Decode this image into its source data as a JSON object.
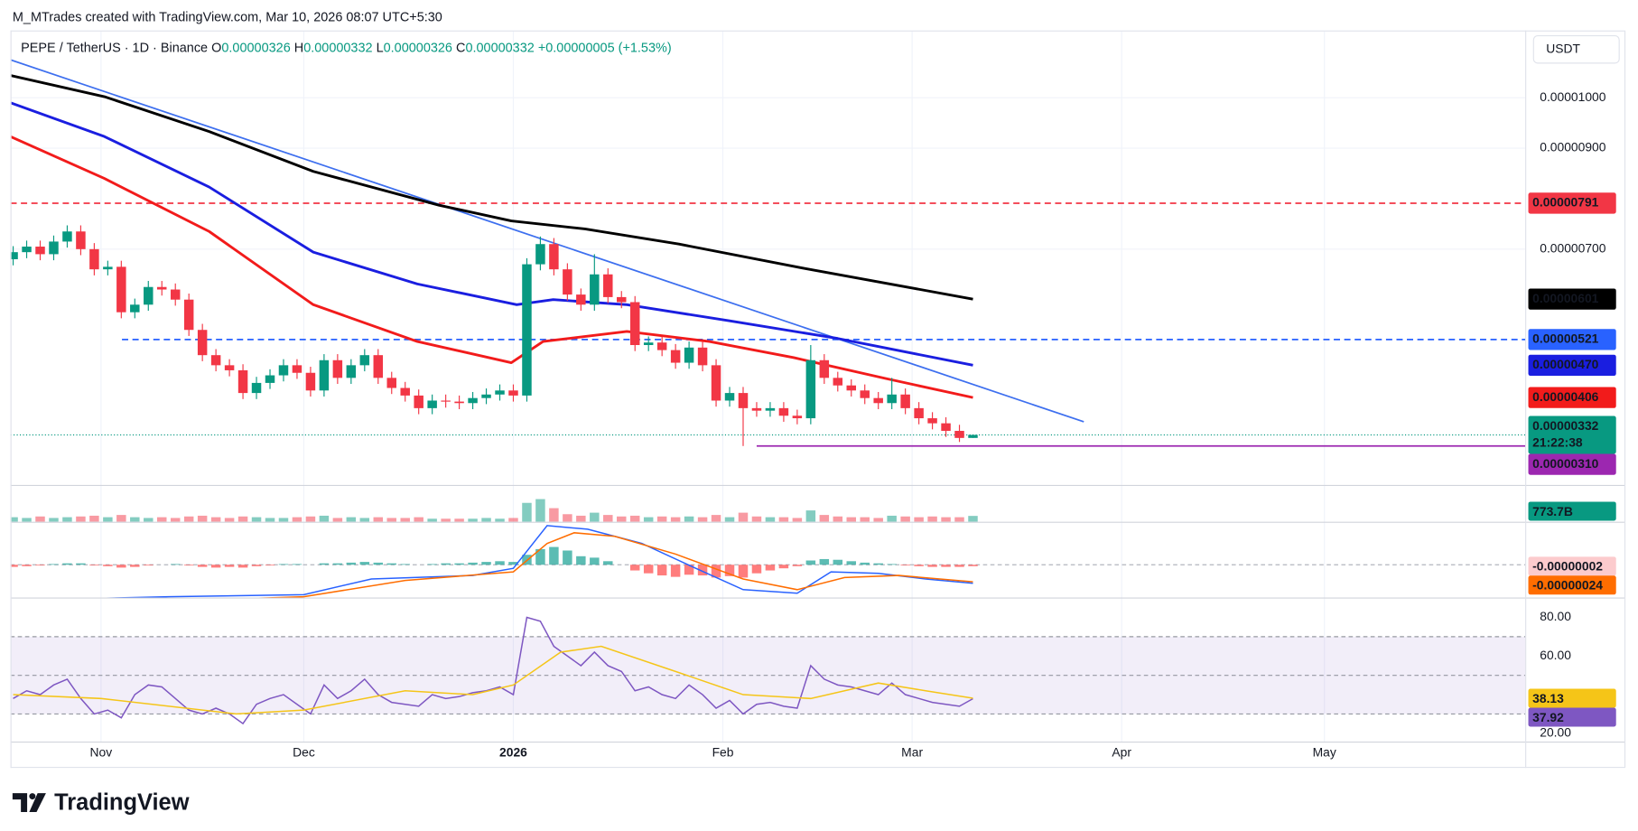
{
  "header": {
    "credit": "M_MTrades created with TradingView.com, Mar 10, 2026 08:07 UTC+5:30",
    "symbol": "PEPE / TetherUS · 1D · Binance",
    "ohlc": [
      "O",
      "0.00000326",
      "H",
      "0.00000332",
      "L",
      "0.00000326",
      "C",
      "0.00000332"
    ],
    "change": "+0.00000005 (+1.53%)",
    "currency": "USDT"
  },
  "footer": {
    "brand": "TradingView"
  },
  "chart_data": [
    {
      "type": "candlestick",
      "up_color": "#089981",
      "down_color": "#f23645",
      "xlim": [
        -13.4,
        210.7
      ],
      "xticks": [
        {
          "value": 0,
          "label": "Nov"
        },
        {
          "value": 30,
          "label": "Dec"
        },
        {
          "value": 61,
          "label": "2026"
        },
        {
          "value": 92,
          "label": "Feb"
        },
        {
          "value": 120,
          "label": "Mar"
        },
        {
          "value": 151,
          "label": "Apr"
        },
        {
          "value": 181,
          "label": "May"
        }
      ],
      "ylim": [
        2.35e-06,
        1.131e-05
      ],
      "yticks": [
        {
          "value": 1e-05,
          "label": "0.00001000"
        },
        {
          "value": 9e-06,
          "label": "0.00000900"
        },
        {
          "value": 7e-06,
          "label": "0.00000700"
        }
      ],
      "grid": true,
      "x": [
        -13,
        -11,
        -9,
        -7,
        -5,
        -3,
        -1,
        1,
        3,
        5,
        7,
        9,
        11,
        13,
        15,
        17,
        19,
        21,
        23,
        25,
        27,
        29,
        31,
        33,
        35,
        37,
        39,
        41,
        43,
        45,
        47,
        49,
        51,
        53,
        55,
        57,
        59,
        61,
        63,
        65,
        67,
        69,
        71,
        73,
        75,
        77,
        79,
        81,
        83,
        85,
        87,
        89,
        91,
        93,
        95,
        97,
        99,
        101,
        103,
        105,
        107,
        109,
        111,
        113,
        115,
        117,
        119,
        121,
        123,
        125,
        127,
        129
      ],
      "open": [
        6.8e-06,
        6.94e-06,
        7.05e-06,
        6.9e-06,
        7.15e-06,
        7.35e-06,
        7e-06,
        6.6e-06,
        6.65e-06,
        5.75e-06,
        5.9e-06,
        6.25e-06,
        6.2e-06,
        6e-06,
        5.4e-06,
        4.9e-06,
        4.7e-06,
        4.6e-06,
        4.15e-06,
        4.35e-06,
        4.5e-06,
        4.7e-06,
        4.55e-06,
        4.2e-06,
        4.8e-06,
        4.45e-06,
        4.7e-06,
        4.9e-06,
        4.45e-06,
        4.25e-06,
        4.1e-06,
        3.85e-06,
        4e-06,
        3.98e-06,
        3.95e-06,
        4.05e-06,
        4.12e-06,
        4.2e-06,
        4.1e-06,
        6.7e-06,
        7.1e-06,
        6.6e-06,
        6.1e-06,
        5.9e-06,
        6.5e-06,
        6.05e-06,
        5.95e-06,
        5.1e-06,
        5.15e-06,
        5e-06,
        4.75e-06,
        5.05e-06,
        4.7e-06,
        4e-06,
        4.15e-06,
        3.85e-06,
        3.8e-06,
        3.85e-06,
        3.7e-06,
        3.65e-06,
        4.8e-06,
        4.45e-06,
        4.3e-06,
        4.2e-06,
        4.05e-06,
        3.95e-06,
        4.12e-06,
        3.85e-06,
        3.65e-06,
        3.55e-06,
        3.4e-06,
        3.26e-06
      ],
      "high": [
        7.06e-06,
        7.17e-06,
        7.17e-06,
        7.27e-06,
        7.47e-06,
        7.47e-06,
        7.12e-06,
        6.77e-06,
        6.77e-06,
        6.02e-06,
        6.37e-06,
        6.37e-06,
        6.32e-06,
        6.12e-06,
        5.52e-06,
        5.02e-06,
        4.82e-06,
        4.72e-06,
        4.47e-06,
        4.62e-06,
        4.82e-06,
        4.82e-06,
        4.67e-06,
        4.92e-06,
        4.92e-06,
        4.82e-06,
        5.02e-06,
        5.02e-06,
        4.57e-06,
        4.37e-06,
        4.22e-06,
        4.12e-06,
        4.12e-06,
        4.1e-06,
        4.17e-06,
        4.24e-06,
        4.32e-06,
        4.32e-06,
        6.82e-06,
        7.25e-06,
        7.22e-06,
        6.72e-06,
        6.22e-06,
        6.9e-06,
        6.62e-06,
        6.17e-06,
        6.07e-06,
        5.27e-06,
        5.27e-06,
        5.12e-06,
        5.17e-06,
        5.17e-06,
        4.82e-06,
        4.27e-06,
        4.27e-06,
        3.97e-06,
        3.97e-06,
        3.97e-06,
        3.82e-06,
        5.1e-06,
        4.92e-06,
        4.57e-06,
        4.42e-06,
        4.32e-06,
        4.17e-06,
        4.45e-06,
        4.24e-06,
        3.97e-06,
        3.77e-06,
        3.67e-06,
        3.52e-06,
        3.32e-06
      ],
      "low": [
        6.68e-06,
        6.82e-06,
        6.78e-06,
        6.78e-06,
        7.03e-06,
        6.88e-06,
        6.48e-06,
        6.48e-06,
        5.63e-06,
        5.63e-06,
        5.78e-06,
        6.08e-06,
        5.88e-06,
        5.28e-06,
        4.78e-06,
        4.58e-06,
        4.48e-06,
        4.03e-06,
        4.03e-06,
        4.23e-06,
        4.38e-06,
        4.43e-06,
        4.08e-06,
        4.08e-06,
        4.33e-06,
        4.33e-06,
        4.58e-06,
        4.33e-06,
        4.13e-06,
        3.98e-06,
        3.73e-06,
        3.73e-06,
        3.86e-06,
        3.83e-06,
        3.83e-06,
        3.93e-06,
        4e-06,
        3.98e-06,
        3.98e-06,
        6.58e-06,
        6.48e-06,
        5.98e-06,
        5.78e-06,
        5.78e-06,
        5.93e-06,
        5.83e-06,
        4.98e-06,
        4.98e-06,
        4.88e-06,
        4.63e-06,
        4.63e-06,
        4.58e-06,
        3.88e-06,
        3.88e-06,
        3.1e-06,
        3.68e-06,
        3.68e-06,
        3.58e-06,
        3.53e-06,
        3.53e-06,
        4.33e-06,
        4.18e-06,
        4.08e-06,
        3.93e-06,
        3.83e-06,
        3.83e-06,
        3.73e-06,
        3.53e-06,
        3.43e-06,
        3.28e-06,
        3.18e-06,
        3.26e-06
      ],
      "close": [
        6.94e-06,
        7.05e-06,
        6.9e-06,
        7.15e-06,
        7.35e-06,
        7e-06,
        6.6e-06,
        6.65e-06,
        5.75e-06,
        5.9e-06,
        6.25e-06,
        6.2e-06,
        6e-06,
        5.4e-06,
        4.9e-06,
        4.7e-06,
        4.6e-06,
        4.15e-06,
        4.35e-06,
        4.5e-06,
        4.7e-06,
        4.55e-06,
        4.2e-06,
        4.8e-06,
        4.45e-06,
        4.7e-06,
        4.9e-06,
        4.45e-06,
        4.25e-06,
        4.1e-06,
        3.85e-06,
        4e-06,
        3.98e-06,
        3.95e-06,
        4.05e-06,
        4.12e-06,
        4.2e-06,
        4.1e-06,
        6.7e-06,
        7.1e-06,
        6.6e-06,
        6.1e-06,
        5.9e-06,
        6.5e-06,
        6.05e-06,
        5.95e-06,
        5.1e-06,
        5.15e-06,
        5e-06,
        4.75e-06,
        5.05e-06,
        4.7e-06,
        4e-06,
        4.15e-06,
        3.85e-06,
        3.8e-06,
        3.85e-06,
        3.7e-06,
        3.65e-06,
        4.8e-06,
        4.45e-06,
        4.3e-06,
        4.2e-06,
        4.05e-06,
        3.95e-06,
        4.12e-06,
        3.85e-06,
        3.65e-06,
        3.55e-06,
        3.4e-06,
        3.26e-06,
        3.32e-06
      ],
      "lines": [
        {
          "color": "#000000",
          "x": [
            -13.4,
            0.5,
            16,
            31.4,
            50,
            60.7,
            71.6,
            85.5,
            104,
            129
          ],
          "values": [
            1.044e-05,
            1.002e-05,
            9.33e-06,
            8.54e-06,
            7.87e-06,
            7.56e-06,
            7.4e-06,
            7.1e-06,
            6.62e-06,
            6.01e-06
          ],
          "label": "0.00000601"
        },
        {
          "color": "#1a1ee0",
          "x": [
            -13.4,
            0.5,
            16,
            31.4,
            46.8,
            61.5,
            66.9,
            77.8,
            93,
            109,
            129
          ],
          "values": [
            9.9e-06,
            9.23e-06,
            8.23e-06,
            6.94e-06,
            6.31e-06,
            5.9e-06,
            6e-06,
            5.9e-06,
            5.58e-06,
            5.23e-06,
            4.7e-06
          ],
          "label": "0.00000470"
        },
        {
          "color": "#f21b1b",
          "x": [
            -13.4,
            0.5,
            16,
            31.4,
            46.8,
            60.7,
            65.4,
            77.8,
            90,
            102.5,
            116,
            129
          ],
          "values": [
            9.23e-06,
            8.4e-06,
            7.35e-06,
            5.9e-06,
            5.17e-06,
            4.75e-06,
            5.17e-06,
            5.37e-06,
            5.17e-06,
            4.85e-06,
            4.44e-06,
            4.06e-06
          ],
          "label": "0.00000406"
        }
      ],
      "trendline": {
        "color": "#3d6fef",
        "x": [
          -13.4,
          145.4
        ],
        "values": [
          1.075e-05,
          3.58e-06
        ]
      },
      "levels": [
        {
          "value": 7.91e-06,
          "label": "0.00000791",
          "color": "#f23645",
          "style": "dashed"
        },
        {
          "value": 5.21e-06,
          "label": "0.00000521",
          "color": "#2962ff",
          "style": "dashed",
          "xstart": 3.1
        },
        {
          "value": 3.1e-06,
          "label": "0.00000310",
          "color": "#9c27b0",
          "style": "solid",
          "xstart": 97
        }
      ],
      "price_line": {
        "value": 3.32e-06,
        "label": "0.00000332",
        "countdown": "21:22:38",
        "color": "#089981"
      }
    },
    {
      "type": "volume",
      "ylim": [
        0,
        4600000000000.0
      ],
      "values": [
        600000000000.0,
        500000000000.0,
        700000000000.0,
        500000000000.0,
        600000000000.0,
        700000000000.0,
        800000000000.0,
        600000000000.0,
        900000000000.0,
        600000000000.0,
        500000000000.0,
        600000000000.0,
        500000000000.0,
        700000000000.0,
        800000000000.0,
        600000000000.0,
        500000000000.0,
        700000000000.0,
        600000000000.0,
        500000000000.0,
        500000000000.0,
        600000000000.0,
        700000000000.0,
        800000000000.0,
        500000000000.0,
        600000000000.0,
        500000000000.0,
        600000000000.0,
        500000000000.0,
        500000000000.0,
        600000000000.0,
        400000000000.0,
        400000000000.0,
        400000000000.0,
        400000000000.0,
        500000000000.0,
        400000000000.0,
        500000000000.0,
        2500000000000.0,
        3000000000000.0,
        1800000000000.0,
        1000000000000.0,
        800000000000.0,
        1200000000000.0,
        900000000000.0,
        700000000000.0,
        800000000000.0,
        600000000000.0,
        700000000000.0,
        600000000000.0,
        700000000000.0,
        600000000000.0,
        900000000000.0,
        600000000000.0,
        1200000000000.0,
        700000000000.0,
        600000000000.0,
        600000000000.0,
        500000000000.0,
        1500000000000.0,
        900000000000.0,
        700000000000.0,
        600000000000.0,
        600000000000.0,
        500000000000.0,
        800000000000.0,
        700000000000.0,
        600000000000.0,
        700000000000.0,
        600000000000.0,
        600000000000.0,
        773700000000
      ],
      "value_labels": [
        null,
        null,
        null,
        null,
        null,
        null,
        null,
        null,
        null,
        null,
        null,
        null,
        null,
        null,
        null,
        null,
        null,
        null,
        null,
        null,
        null,
        null,
        null,
        null,
        null,
        null,
        null,
        null,
        null,
        null,
        null,
        null,
        null,
        null,
        null,
        null,
        null,
        null,
        null,
        null,
        null,
        null,
        null,
        null,
        null,
        null,
        null,
        null,
        null,
        null,
        null,
        null,
        null,
        null,
        null,
        null,
        null,
        null,
        null,
        null,
        null,
        null,
        null,
        null,
        null,
        null,
        null,
        null,
        null,
        null,
        null,
        "773.7B"
      ],
      "up_color": "rgba(8,153,129,0.5)",
      "down_color": "rgba(242,54,69,0.5)",
      "label_color": "#089981"
    },
    {
      "type": "macd",
      "ylim": [
        -4.6e-07,
        5.9e-07
      ],
      "zero_line": true,
      "histogram": [
        -3e-08,
        -2e-08,
        -1e-08,
        1e-08,
        2e-08,
        2e-08,
        -1e-08,
        -2e-08,
        -4e-08,
        -3e-08,
        -1e-08,
        0,
        1e-08,
        -1e-08,
        -3e-08,
        -4e-08,
        -3e-08,
        -4e-08,
        -2e-08,
        -1e-08,
        1e-08,
        1e-08,
        0,
        2e-08,
        2e-08,
        3e-08,
        4e-08,
        3e-08,
        2e-08,
        1e-08,
        0,
        1e-08,
        2e-08,
        2e-08,
        3e-08,
        4e-08,
        5e-08,
        4e-08,
        1.4e-07,
        2.2e-07,
        2.5e-07,
        2e-07,
        1.2e-07,
        1e-07,
        5e-08,
        0,
        -8e-08,
        -1.2e-07,
        -1.5e-07,
        -1.7e-07,
        -1.4e-07,
        -1.5e-07,
        -1.8e-07,
        -1.6e-07,
        -1.8e-07,
        -1.2e-07,
        -8e-08,
        -5e-08,
        -2e-08,
        6e-08,
        8e-08,
        7e-08,
        5e-08,
        3e-08,
        2e-08,
        1e-08,
        -1e-08,
        -2e-08,
        -3e-08,
        -3e-08,
        -3e-08,
        -2e-08
      ],
      "value_labels": [
        null,
        null,
        null,
        null,
        null,
        null,
        null,
        null,
        null,
        null,
        null,
        null,
        null,
        null,
        null,
        null,
        null,
        null,
        null,
        null,
        null,
        null,
        null,
        null,
        null,
        null,
        null,
        null,
        null,
        null,
        null,
        null,
        null,
        null,
        null,
        null,
        null,
        null,
        null,
        null,
        null,
        null,
        null,
        null,
        null,
        null,
        null,
        null,
        null,
        null,
        null,
        null,
        null,
        null,
        null,
        null,
        null,
        null,
        null,
        null,
        null,
        null,
        null,
        null,
        null,
        null,
        null,
        null,
        null,
        null,
        null,
        "-0.00000002"
      ],
      "pos_color": "#26a69a",
      "neg_color": "#ff5252",
      "label_color": "#fccbcd",
      "series": [
        {
          "color": "#2962ff",
          "x": [
            -13,
            10,
            30,
            40,
            55,
            61,
            66,
            72,
            80,
            88,
            95,
            103,
            108,
            115,
            122,
            129
          ],
          "values": [
            -5e-07,
            -4.5e-07,
            -4.2e-07,
            -2e-07,
            -1.5e-07,
            -5e-08,
            5.5e-07,
            5e-07,
            3e-07,
            -5e-08,
            -3.5e-07,
            -4e-07,
            -1e-07,
            -1.2e-07,
            -2e-07,
            -2.6e-07
          ]
        },
        {
          "color": "#ff6d00",
          "x": [
            -13,
            20,
            30,
            45,
            61,
            66,
            70,
            76,
            85,
            95,
            103,
            110,
            118,
            129
          ],
          "values": [
            -5.5e-07,
            -4.8e-07,
            -4.5e-07,
            -2.2e-07,
            -1e-07,
            3e-07,
            4.5e-07,
            4e-07,
            1.5e-07,
            -2e-07,
            -3.5e-07,
            -1.8e-07,
            -1.5e-07,
            -2.4e-07
          ],
          "label": "-0.00000024"
        }
      ]
    },
    {
      "type": "rsi",
      "ylim": [
        15.7,
        89.2
      ],
      "yticks": [
        {
          "value": 80,
          "label": "80.00"
        },
        {
          "value": 60,
          "label": "60.00"
        },
        {
          "value": 20,
          "label": "20.00"
        }
      ],
      "bands": [
        70,
        50,
        30
      ],
      "band_color": "rgba(126,87,194,0.10)",
      "series": [
        {
          "color": "#7e57c2",
          "values": [
            38,
            42,
            40,
            45,
            48,
            38,
            30,
            32,
            28,
            40,
            45,
            44,
            38,
            32,
            30,
            33,
            30,
            25,
            35,
            38,
            40,
            35,
            30,
            45,
            38,
            42,
            48,
            40,
            36,
            35,
            34,
            40,
            38,
            39,
            41,
            42,
            44,
            40,
            80,
            78,
            65,
            60,
            55,
            62,
            55,
            52,
            42,
            44,
            40,
            38,
            45,
            40,
            33,
            37,
            30,
            35,
            36,
            34,
            33,
            55,
            48,
            45,
            44,
            42,
            40,
            46,
            40,
            38,
            36,
            35,
            34,
            37.92
          ]
        },
        {
          "color": "#f5c518",
          "x": [
            -13,
            0,
            20,
            30,
            45,
            55,
            61,
            68,
            74,
            85,
            95,
            105,
            115,
            122,
            129
          ],
          "values": [
            40,
            38,
            30,
            32,
            42,
            40,
            45,
            62,
            65,
            52,
            40,
            38,
            46,
            42,
            38.13
          ]
        }
      ]
    }
  ]
}
